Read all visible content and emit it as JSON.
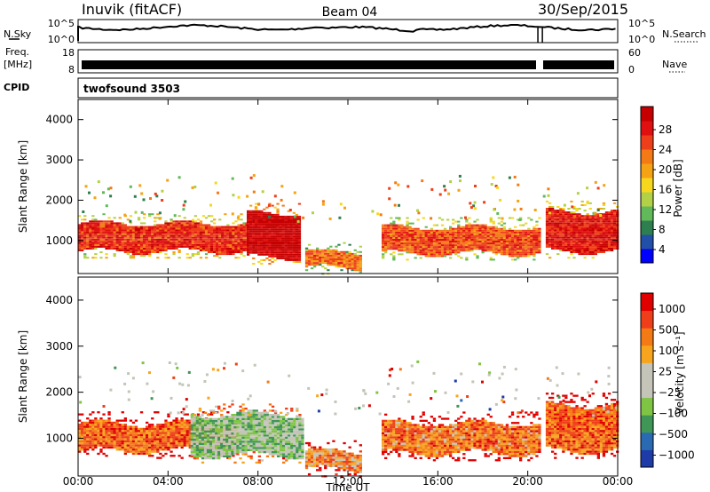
{
  "header": {
    "station": "Inuvik (fitACF)",
    "beam": "Beam 04",
    "date": "30/Sep/2015"
  },
  "sky_panel": {
    "left_label": "N.Sky",
    "right_label": "N.Search",
    "ticks": [
      "10^5",
      "10^0"
    ]
  },
  "freq_panel": {
    "left_label_1": "Freq.",
    "left_label_2": "[MHz]",
    "left_ticks": [
      "18",
      "8"
    ],
    "right_label": "Nave",
    "right_ticks": [
      "60",
      "0"
    ]
  },
  "cpid": {
    "label": "CPID",
    "value": "twofsound 3503"
  },
  "chart_data": [
    {
      "type": "heatmap",
      "name": "Power",
      "ylabel": "Slant Range [km]",
      "xlabel": "",
      "ylim": [
        180,
        4500
      ],
      "y_ticks": [
        "4000",
        "3000",
        "2000",
        "1000"
      ],
      "colorbar": {
        "label": "Power [dB]",
        "tick_labels": [
          "28",
          "24",
          "20",
          "16",
          "12",
          "8",
          "4"
        ],
        "colors": [
          "#0000ff",
          "#224fa8",
          "#2d7f4f",
          "#61b95a",
          "#b3d146",
          "#f7d71e",
          "#f5a214",
          "#f47a16",
          "#ee3f1a",
          "#e01010",
          "#c60000"
        ]
      },
      "bands": [
        {
          "t0": 0.0,
          "t1": 7.5,
          "r0": 700,
          "r1": 1400,
          "level": 0.82
        },
        {
          "t0": 7.5,
          "t1": 9.8,
          "r0": 550,
          "r1": 1650,
          "level": 0.97
        },
        {
          "t0": 10.1,
          "t1": 12.5,
          "r0": 300,
          "r1": 700,
          "level": 0.7
        },
        {
          "t0": 13.5,
          "t1": 20.5,
          "r0": 650,
          "r1": 1300,
          "level": 0.75
        },
        {
          "t0": 20.8,
          "t1": 24.0,
          "r0": 700,
          "r1": 1700,
          "level": 0.86
        }
      ]
    },
    {
      "type": "heatmap",
      "name": "Velocity",
      "ylabel": "Slant Range [km]",
      "xlabel": "Time UT",
      "x_ticks": [
        "00:00",
        "04:00",
        "08:00",
        "12:00",
        "16:00",
        "20:00",
        "00:00"
      ],
      "ylim": [
        180,
        4500
      ],
      "y_ticks": [
        "4000",
        "3000",
        "2000",
        "1000"
      ],
      "colorbar": {
        "label": "Velocity [m s⁻¹]",
        "tick_labels": [
          "1000",
          "500",
          "100",
          "25",
          "−25",
          "−100",
          "−500",
          "−1000"
        ],
        "colors": [
          "#1e3ca8",
          "#2a6ab3",
          "#3f9657",
          "#7fc544",
          "#c4c4b8",
          "#c4c4b8",
          "#f7a51e",
          "#f47a16",
          "#ee3f1a",
          "#e00000"
        ]
      },
      "bands": [
        {
          "t0": 0.0,
          "t1": 7.0,
          "r0": 700,
          "r1": 1300,
          "level": 0.22
        },
        {
          "t0": 5.0,
          "t1": 10.0,
          "r0": 600,
          "r1": 1500,
          "level": 0.62
        },
        {
          "t0": 10.1,
          "t1": 12.5,
          "r0": 300,
          "r1": 700,
          "level": 0.3
        },
        {
          "t0": 13.5,
          "t1": 20.5,
          "r0": 650,
          "r1": 1300,
          "level": 0.25
        },
        {
          "t0": 20.8,
          "t1": 24.0,
          "r0": 700,
          "r1": 1700,
          "level": 0.22
        }
      ]
    }
  ]
}
